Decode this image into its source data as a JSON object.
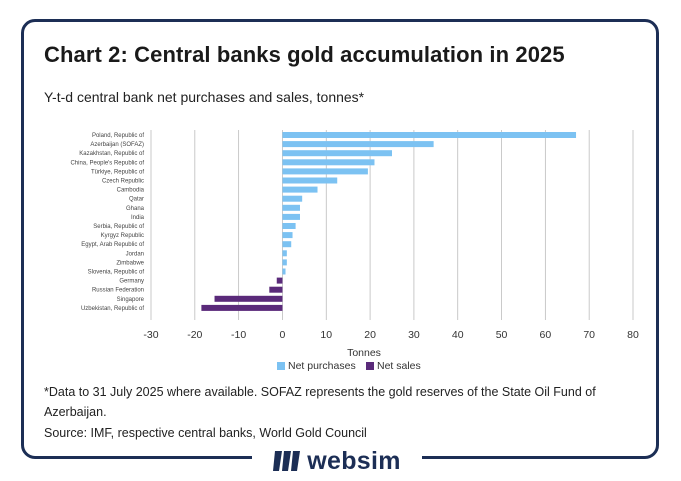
{
  "chart_data": {
    "type": "bar",
    "orientation": "horizontal",
    "title": "Chart 2: Central banks gold accumulation in 2025",
    "subtitle": "Y-t-d central bank net purchases and sales, tonnes*",
    "xlabel": "Tonnes",
    "xlim": [
      -30,
      80
    ],
    "xticks": [
      -30,
      -20,
      -10,
      0,
      10,
      20,
      30,
      40,
      50,
      60,
      70,
      80
    ],
    "grid": true,
    "legend_position": "bottom",
    "legend": [
      {
        "name": "Net purchases",
        "color": "#7cc2f2"
      },
      {
        "name": "Net sales",
        "color": "#5a2a7a"
      }
    ],
    "categories": [
      "Poland, Republic of",
      "Azerbaijan (SOFAZ)",
      "Kazakhstan, Republic of",
      "China, People's Republic of",
      "Türkiye, Republic of",
      "Czech Republic",
      "Cambodia",
      "Qatar",
      "Ghana",
      "India",
      "Serbia, Republic of",
      "Kyrgyz Republic",
      "Egypt, Arab Republic of",
      "Jordan",
      "Zimbabwe",
      "Slovenia, Republic of",
      "Germany",
      "Russian Federation",
      "Singapore",
      "Uzbekistan, Republic of"
    ],
    "values": [
      67,
      34.5,
      25,
      21,
      19.5,
      12.5,
      8,
      4.5,
      4,
      4,
      3,
      2.3,
      2,
      1,
      1,
      0.7,
      -1.3,
      -3,
      -15.5,
      -18.5
    ]
  },
  "notes": {
    "footnote": "*Data to 31 July 2025 where available. SOFAZ represents the gold reserves of the State Oil Fund of Azerbaijan.",
    "source": "Source: IMF, respective central banks, World Gold Council"
  },
  "brand": {
    "name": "websim",
    "color": "#1c2e55"
  }
}
